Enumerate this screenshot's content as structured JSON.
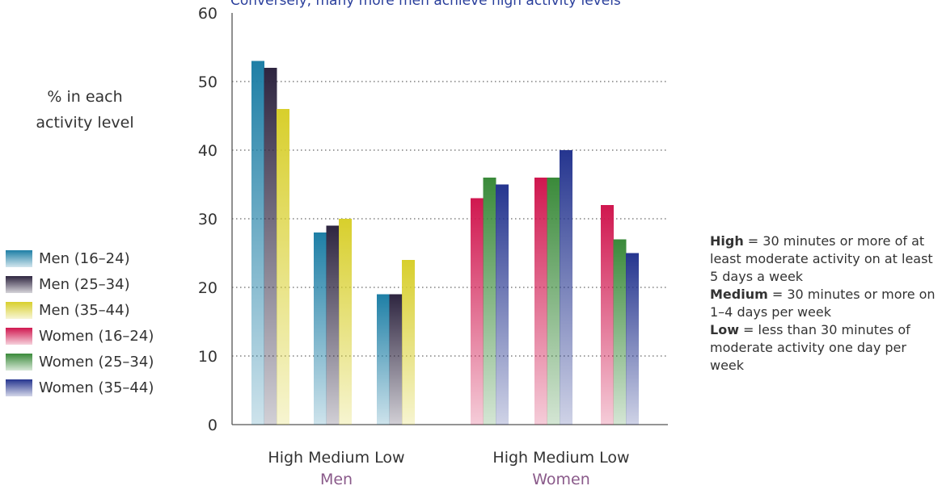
{
  "chart_data": {
    "type": "bar",
    "title": "Conversely, many more men achieve high activity levels",
    "ylabel_lines": [
      "% in each",
      "activity level"
    ],
    "ylim": [
      0,
      60
    ],
    "yticks": [
      0,
      10,
      20,
      30,
      40,
      50,
      60
    ],
    "grid": true,
    "groups": [
      {
        "label": "Men",
        "categories": [
          "High",
          "Medium",
          "Low"
        ],
        "series": [
          {
            "name": "Men (16–24)",
            "values": [
              53,
              28,
              19
            ]
          },
          {
            "name": "Men (25–34)",
            "values": [
              52,
              29,
              19
            ]
          },
          {
            "name": "Men (35–44)",
            "values": [
              46,
              30,
              24
            ]
          }
        ]
      },
      {
        "label": "Women",
        "categories": [
          "High",
          "Medium",
          "Low"
        ],
        "series": [
          {
            "name": "Women (16–24)",
            "values": [
              33,
              36,
              32
            ]
          },
          {
            "name": "Women (25–34)",
            "values": [
              36,
              36,
              27
            ]
          },
          {
            "name": "Women (35–44)",
            "values": [
              35,
              40,
              25
            ]
          }
        ]
      }
    ],
    "legend_placement": "left",
    "colors": {
      "men_16_24": "#1e7fa6",
      "men_25_34": "#2e2540",
      "men_35_44": "#d8cf2c",
      "women_16_24": "#d0174f",
      "women_25_34": "#3a8a3a",
      "women_35_44": "#25358f"
    }
  },
  "legend": [
    {
      "label": "Men (16–24)",
      "color": "#1e7fa6"
    },
    {
      "label": "Men (25–34)",
      "color": "#2e2540"
    },
    {
      "label": "Men (35–44)",
      "color": "#d8cf2c"
    },
    {
      "label": "Women (16–24)",
      "color": "#d0174f"
    },
    {
      "label": "Women (25–34)",
      "color": "#3a8a3a"
    },
    {
      "label": "Women (35–44)",
      "color": "#25358f"
    }
  ],
  "note": {
    "high_term": "High",
    "high_text": " = 30 minutes or more of at least moderate activity on at least 5 days a week",
    "medium_term": "Medium",
    "medium_text": " = 30 minutes or more on 1–4 days per week",
    "low_term": "Low",
    "low_text": " = less than 30 minutes of moderate activity one day per week"
  },
  "group_label_color": "#8a5a8a"
}
